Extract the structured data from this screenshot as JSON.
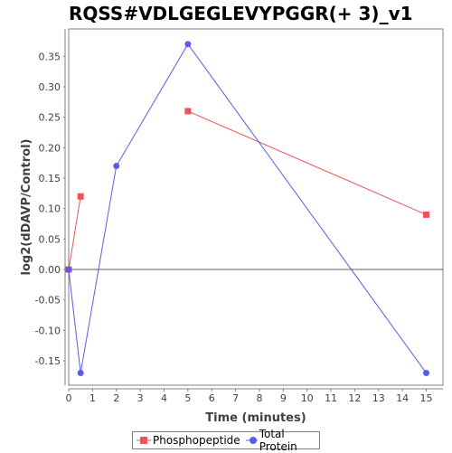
{
  "chart_data": {
    "type": "line",
    "title": "RQSS#VDLGEGLEVYPGGR(+ 3)_v1",
    "xlabel": "Time (minutes)",
    "ylabel": "log2(dDAVP/Control)",
    "xlim": [
      0,
      15.7
    ],
    "ylim": [
      -0.19,
      0.395
    ],
    "x_ticks": [
      0,
      1,
      2,
      3,
      4,
      5,
      6,
      7,
      8,
      9,
      10,
      11,
      12,
      13,
      14,
      15
    ],
    "y_ticks": [
      -0.15,
      -0.1,
      -0.05,
      0.0,
      0.05,
      0.1,
      0.15,
      0.2,
      0.25,
      0.3,
      0.35
    ],
    "y_tick_labels": [
      "-0.15",
      "-0.10",
      "-0.05",
      "0.00",
      "0.05",
      "0.10",
      "0.15",
      "0.20",
      "0.25",
      "0.30",
      "0.35"
    ],
    "x_tick_labels": [
      "0",
      "1",
      "2",
      "3",
      "4",
      "5",
      "6",
      "7",
      "8",
      "9",
      "10",
      "11",
      "12",
      "13",
      "14",
      "15"
    ],
    "zero_line": true,
    "grid": false,
    "legend_position": "bottom",
    "series": [
      {
        "name": "Phosphopeptide",
        "color": "#e8555a",
        "marker": "square",
        "segments": [
          [
            [
              0,
              0.0
            ],
            [
              0.5,
              0.12
            ]
          ],
          [
            [
              5,
              0.26
            ],
            [
              15,
              0.09
            ]
          ]
        ]
      },
      {
        "name": "Total Protein",
        "color": "#5b5be8",
        "marker": "circle",
        "segments": [
          [
            [
              0,
              0.0
            ],
            [
              0.5,
              -0.17
            ],
            [
              2,
              0.17
            ],
            [
              5,
              0.37
            ],
            [
              15,
              -0.17
            ]
          ]
        ]
      }
    ]
  }
}
